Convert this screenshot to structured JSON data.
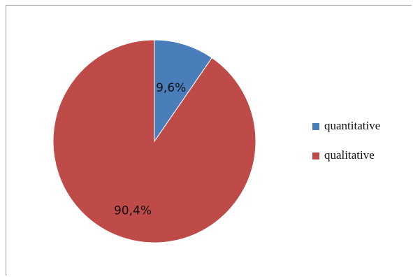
{
  "chart_data": {
    "type": "pie",
    "title": "",
    "slices": [
      {
        "label": "quantitative",
        "value": 9.6,
        "display": "9,6%",
        "color": "#4a7ebb"
      },
      {
        "label": "qualitative",
        "value": 90.4,
        "display": "90,4%",
        "color": "#be4b48"
      }
    ],
    "legend": {
      "placement": "right",
      "entries": [
        "quantitative",
        "qualitative"
      ]
    },
    "start_angle": "12 o'clock",
    "direction": "clockwise"
  }
}
